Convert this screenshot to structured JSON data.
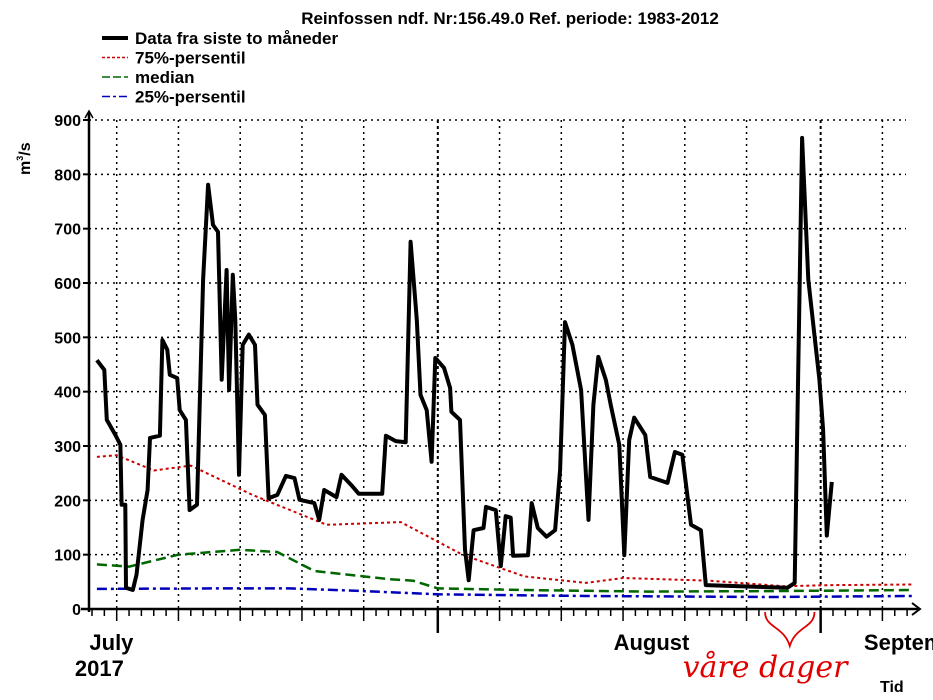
{
  "chart_data": {
    "type": "line",
    "title": "Reinfossen ndf. Nr:156.49.0 Ref. periode: 1983-2012",
    "ylabel": "m³/s",
    "ylabel_base": "m",
    "ylabel_sup": "3",
    "ylabel_tail": "/s",
    "xlabel": "Tid",
    "ylim": [
      0,
      900
    ],
    "xlim_days": [
      0,
      66
    ],
    "yticks": [
      0,
      100,
      200,
      300,
      400,
      500,
      600,
      700,
      800,
      900
    ],
    "ytick_labels": [
      "0",
      "100",
      "200",
      "300",
      "400",
      "500",
      "600",
      "700",
      "800",
      "900"
    ],
    "x_minor_grid_days": [
      2,
      7,
      12,
      17,
      22,
      33,
      38,
      43,
      48,
      53,
      64
    ],
    "x_major_ticks_days": [
      28,
      59
    ],
    "x_labels": [
      {
        "day": 0.6,
        "line1": "July",
        "line2": "2017"
      },
      {
        "day": 45.3,
        "line1": "August",
        "line2": ""
      },
      {
        "day": 63.8,
        "line1": "Septem",
        "line2": ""
      }
    ],
    "grid": true,
    "legend_position": "top-left",
    "annotation": {
      "text": "våre dager",
      "color": "#e00000",
      "day_range": [
        54.5,
        58.5
      ]
    },
    "series": [
      {
        "name": "Data fra siste to måneder",
        "color": "#000000",
        "style": "solid",
        "points": [
          [
            0.4,
            458
          ],
          [
            1.0,
            440
          ],
          [
            1.2,
            348
          ],
          [
            1.9,
            320
          ],
          [
            2.3,
            302
          ],
          [
            2.4,
            192
          ],
          [
            2.7,
            192
          ],
          [
            2.75,
            39
          ],
          [
            3.3,
            35
          ],
          [
            3.6,
            63
          ],
          [
            4.1,
            164
          ],
          [
            4.5,
            219
          ],
          [
            4.7,
            315
          ],
          [
            5.5,
            319
          ],
          [
            5.7,
            495
          ],
          [
            6.1,
            477
          ],
          [
            6.3,
            431
          ],
          [
            6.9,
            425
          ],
          [
            7.1,
            366
          ],
          [
            7.6,
            348
          ],
          [
            7.9,
            182
          ],
          [
            8.5,
            192
          ],
          [
            9.0,
            606
          ],
          [
            9.4,
            781
          ],
          [
            9.8,
            707
          ],
          [
            10.2,
            694
          ],
          [
            10.5,
            422
          ],
          [
            10.9,
            624
          ],
          [
            11.1,
            403
          ],
          [
            11.4,
            615
          ],
          [
            11.6,
            532
          ],
          [
            11.9,
            247
          ],
          [
            12.2,
            486
          ],
          [
            12.7,
            505
          ],
          [
            13.2,
            486
          ],
          [
            13.4,
            376
          ],
          [
            14.0,
            357
          ],
          [
            14.3,
            204
          ],
          [
            15.0,
            210
          ],
          [
            15.7,
            245
          ],
          [
            16.4,
            241
          ],
          [
            16.8,
            201
          ],
          [
            18.0,
            195
          ],
          [
            18.4,
            164
          ],
          [
            18.8,
            219
          ],
          [
            19.8,
            206
          ],
          [
            20.2,
            247
          ],
          [
            21.0,
            228
          ],
          [
            21.6,
            212
          ],
          [
            23.5,
            212
          ],
          [
            23.8,
            319
          ],
          [
            24.6,
            309
          ],
          [
            25.4,
            307
          ],
          [
            25.8,
            676
          ],
          [
            26.3,
            532
          ],
          [
            26.6,
            394
          ],
          [
            27.1,
            366
          ],
          [
            27.5,
            271
          ],
          [
            27.8,
            462
          ],
          [
            28.5,
            444
          ],
          [
            29.0,
            407
          ],
          [
            29.1,
            363
          ],
          [
            29.8,
            348
          ],
          [
            30.2,
            109
          ],
          [
            30.5,
            53
          ],
          [
            30.9,
            145
          ],
          [
            31.7,
            149
          ],
          [
            31.9,
            188
          ],
          [
            32.7,
            182
          ],
          [
            33.1,
            79
          ],
          [
            33.5,
            171
          ],
          [
            33.9,
            168
          ],
          [
            34.1,
            98
          ],
          [
            35.3,
            99
          ],
          [
            35.6,
            195
          ],
          [
            36.1,
            149
          ],
          [
            36.8,
            133
          ],
          [
            37.5,
            145
          ],
          [
            37.9,
            256
          ],
          [
            38.3,
            528
          ],
          [
            38.9,
            486
          ],
          [
            39.6,
            403
          ],
          [
            40.2,
            164
          ],
          [
            40.6,
            376
          ],
          [
            41.0,
            464
          ],
          [
            41.6,
            422
          ],
          [
            42.0,
            376
          ],
          [
            42.7,
            302
          ],
          [
            43.1,
            99
          ],
          [
            43.5,
            311
          ],
          [
            43.9,
            352
          ],
          [
            44.8,
            320
          ],
          [
            45.2,
            243
          ],
          [
            46.6,
            232
          ],
          [
            47.2,
            289
          ],
          [
            47.8,
            284
          ],
          [
            48.5,
            155
          ],
          [
            49.3,
            145
          ],
          [
            49.7,
            44
          ],
          [
            56.3,
            39
          ],
          [
            56.9,
            48
          ],
          [
            57.5,
            867
          ],
          [
            58.0,
            606
          ],
          [
            58.9,
            422
          ],
          [
            59.2,
            330
          ],
          [
            59.5,
            135
          ],
          [
            59.9,
            234
          ]
        ]
      },
      {
        "name": "75%-persentil",
        "color": "#cc0000",
        "style": "dotted",
        "points": [
          [
            0.4,
            280
          ],
          [
            2,
            283
          ],
          [
            5,
            255
          ],
          [
            8,
            264
          ],
          [
            13,
            210
          ],
          [
            19,
            155
          ],
          [
            25,
            160
          ],
          [
            30,
            100
          ],
          [
            35,
            60
          ],
          [
            40,
            48
          ],
          [
            43,
            57
          ],
          [
            50,
            52
          ],
          [
            56,
            42
          ],
          [
            60,
            44
          ],
          [
            66.5,
            45
          ]
        ]
      },
      {
        "name": "median",
        "color": "#006600",
        "style": "dashed",
        "points": [
          [
            0.4,
            82
          ],
          [
            3,
            78
          ],
          [
            7,
            100
          ],
          [
            12,
            109
          ],
          [
            15,
            105
          ],
          [
            18,
            70
          ],
          [
            24,
            55
          ],
          [
            26,
            52
          ],
          [
            28,
            38
          ],
          [
            35,
            35
          ],
          [
            45,
            32
          ],
          [
            55,
            33
          ],
          [
            66.5,
            35
          ]
        ]
      },
      {
        "name": "25%-persentil",
        "color": "#0000bb",
        "style": "dashdot",
        "points": [
          [
            0.4,
            37
          ],
          [
            10,
            38
          ],
          [
            16,
            38
          ],
          [
            22,
            33
          ],
          [
            28,
            27
          ],
          [
            40,
            24
          ],
          [
            55,
            22
          ],
          [
            66.5,
            24
          ]
        ]
      }
    ]
  }
}
